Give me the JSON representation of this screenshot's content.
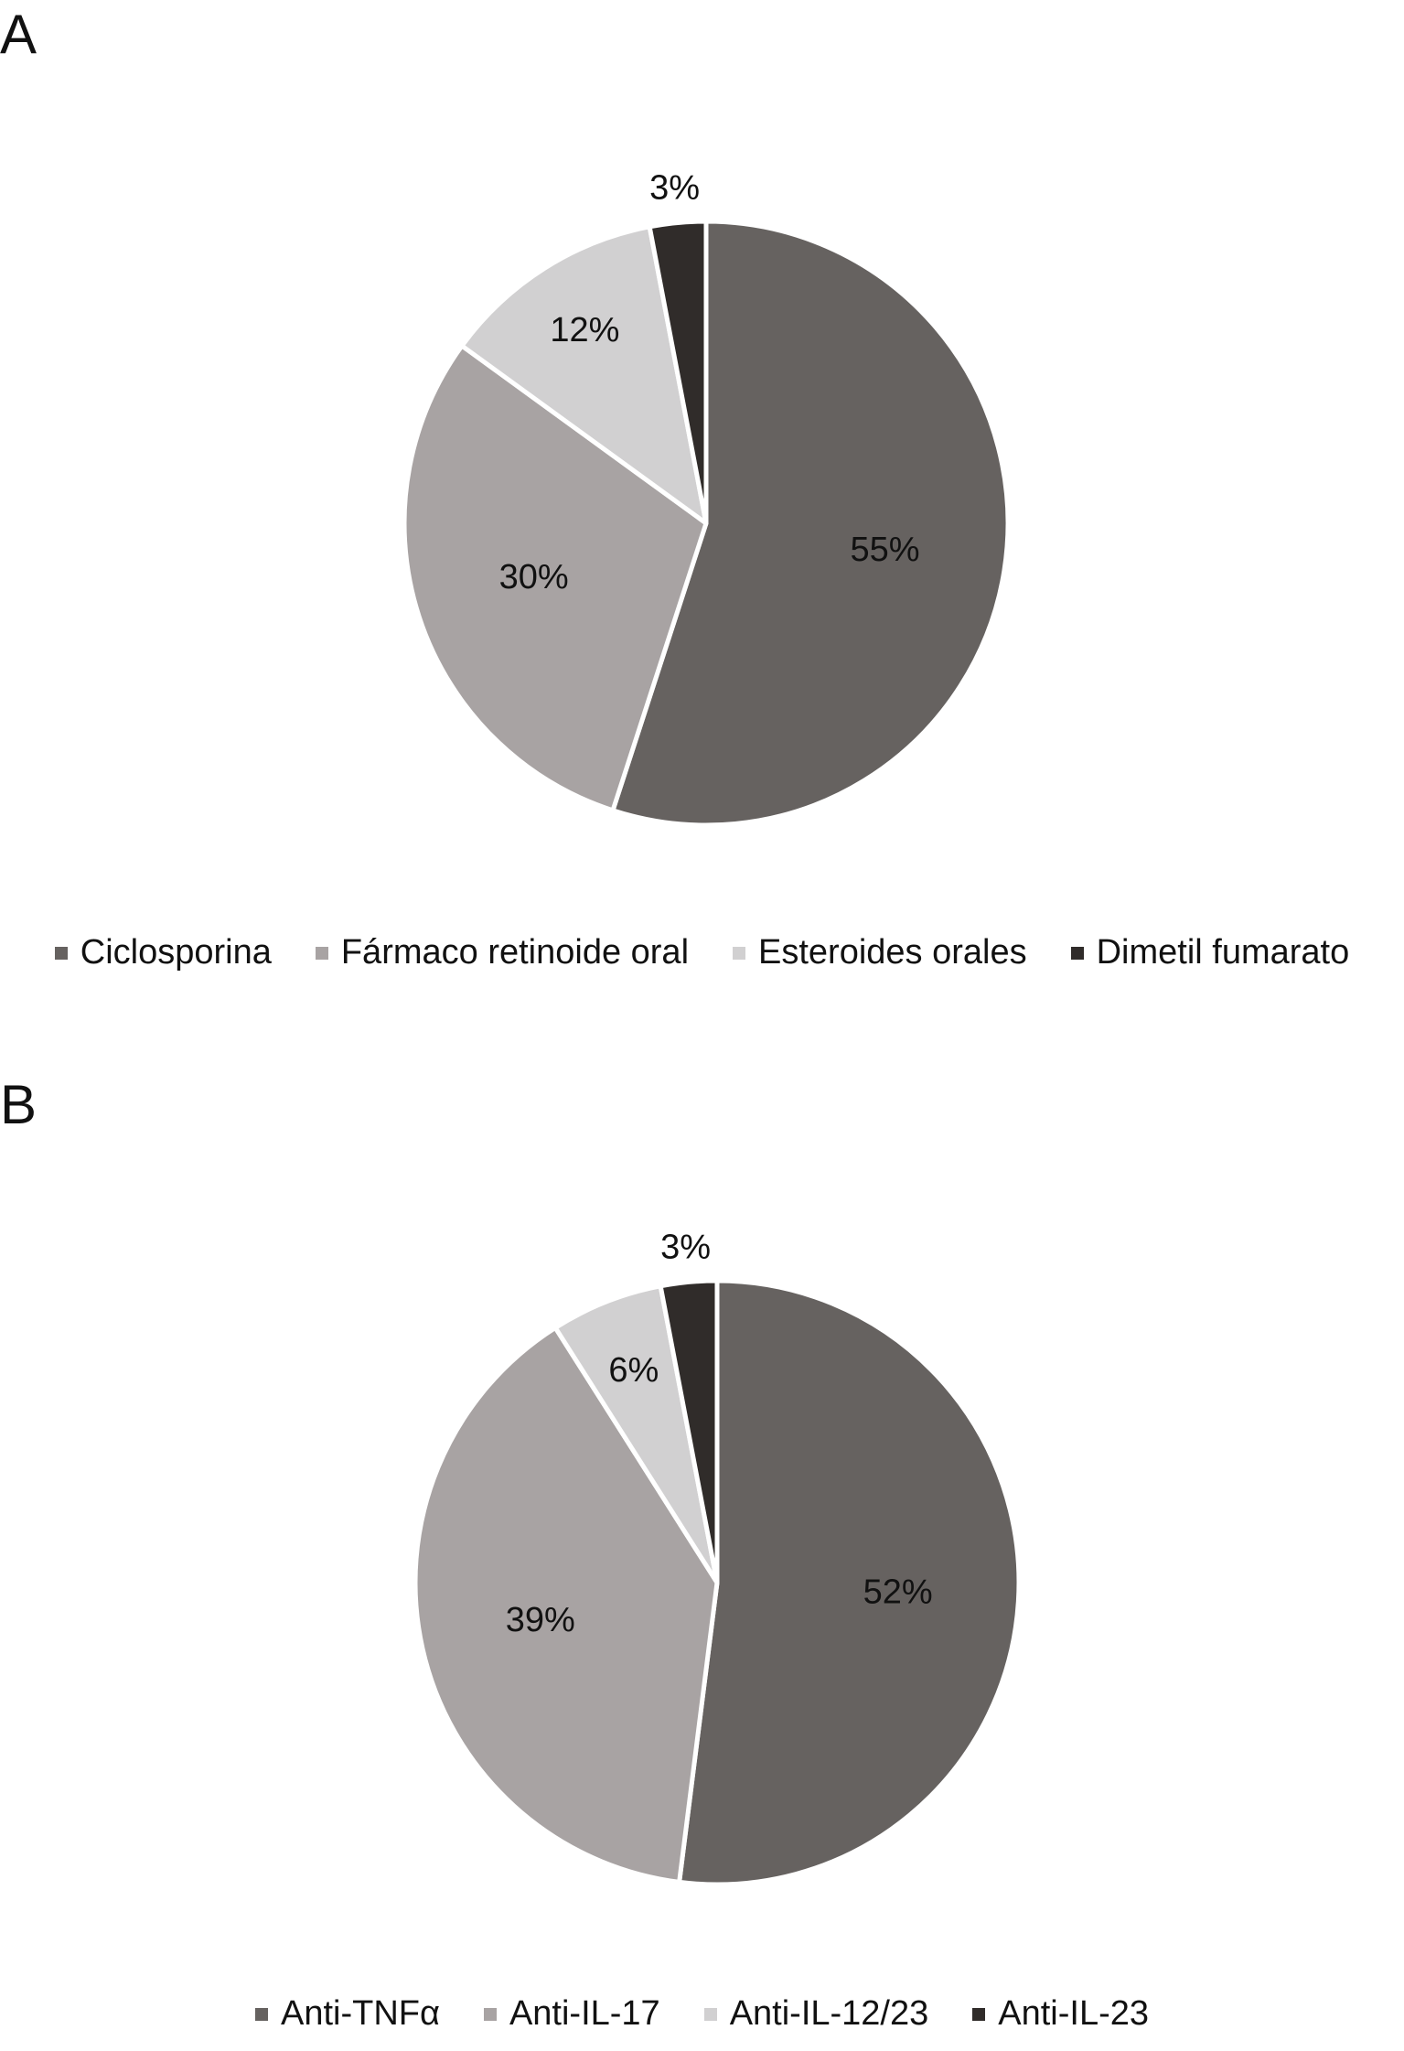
{
  "chart_data": [
    {
      "type": "pie",
      "panel_label": "A",
      "categories": [
        "Ciclosporina",
        "Fármaco retinoide oral",
        "Esteroides orales",
        "Dimetil fumarato"
      ],
      "values": [
        55,
        30,
        12,
        3
      ],
      "data_labels": [
        "55%",
        "30%",
        "12%",
        "3%"
      ],
      "colors": [
        "#666260",
        "#a8a3a3",
        "#d1d0d1",
        "#302c2a"
      ],
      "legend_position": "bottom"
    },
    {
      "type": "pie",
      "panel_label": "B",
      "categories": [
        "Anti-TNFα",
        "Anti-IL-17",
        "Anti-IL-12/23",
        "Anti-IL-23"
      ],
      "values": [
        52,
        39,
        6,
        3
      ],
      "data_labels": [
        "52%",
        "39%",
        "6%",
        "3%"
      ],
      "colors": [
        "#666260",
        "#a8a3a3",
        "#d1d0d1",
        "#302c2a"
      ],
      "legend_position": "bottom"
    }
  ]
}
